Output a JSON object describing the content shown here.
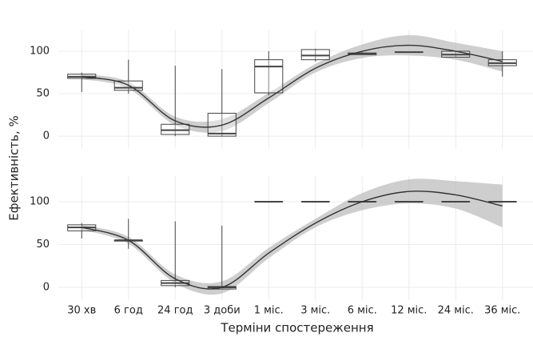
{
  "chart_data": {
    "type": "box",
    "xlabel": "Терміни спостереження",
    "ylabel": "Ефективність, %",
    "categories": [
      "30 хв",
      "6 год",
      "24 год",
      "3 доби",
      "1 міс.",
      "3 міс.",
      "6 міс.",
      "12 міс.",
      "24 міс.",
      "36 міс."
    ],
    "grid": true,
    "box_color": "#444444",
    "line_color": "#333333",
    "band_color": "#bdbdbd",
    "panels": [
      {
        "ylim": [
          -15,
          125
        ],
        "yticks": [
          0,
          50,
          100
        ],
        "boxes": [
          {
            "low": 52,
            "q1": 68,
            "median": 70,
            "q3": 73,
            "high": 75
          },
          {
            "low": 50,
            "q1": 54,
            "median": 57,
            "q3": 65,
            "high": 90
          },
          {
            "low": 0,
            "q1": 2,
            "median": 7,
            "q3": 14,
            "high": 83
          },
          {
            "low": 0,
            "q1": 0,
            "median": 3,
            "q3": 27,
            "high": 79
          },
          {
            "low": 48,
            "q1": 51,
            "median": 82,
            "q3": 90,
            "high": 100
          },
          {
            "low": 88,
            "q1": 90,
            "median": 95,
            "q3": 102,
            "high": 103
          },
          {
            "low": 96,
            "q1": 96,
            "median": 97,
            "q3": 98,
            "high": 99
          },
          {
            "low": 99,
            "q1": 99,
            "median": 99,
            "q3": 99,
            "high": 99
          },
          {
            "low": 93,
            "q1": 93,
            "median": 96,
            "q3": 100,
            "high": 100
          },
          {
            "low": 70,
            "q1": 83,
            "median": 86,
            "q3": 90,
            "high": 100
          }
        ],
        "smooth": {
          "values": [
            70,
            60,
            18,
            13,
            45,
            80,
            100,
            107,
            100,
            88
          ],
          "lower": [
            67,
            56,
            13,
            6,
            39,
            75,
            92,
            95,
            90,
            76
          ],
          "upper": [
            73,
            64,
            23,
            20,
            51,
            85,
            108,
            119,
            110,
            100
          ]
        }
      },
      {
        "ylim": [
          -15,
          130
        ],
        "yticks": [
          0,
          50,
          100
        ],
        "boxes": [
          {
            "low": 57,
            "q1": 66,
            "median": 70,
            "q3": 73,
            "high": 75
          },
          {
            "low": 45,
            "q1": 54,
            "median": 55,
            "q3": 55,
            "high": 80
          },
          {
            "low": 0,
            "q1": 2,
            "median": 5,
            "q3": 8,
            "high": 77
          },
          {
            "low": -2,
            "q1": -2,
            "median": 0,
            "q3": 1,
            "high": 72
          },
          {
            "low": 100,
            "q1": 100,
            "median": 100,
            "q3": 100,
            "high": 100
          },
          {
            "low": 100,
            "q1": 100,
            "median": 100,
            "q3": 100,
            "high": 100
          },
          {
            "low": 100,
            "q1": 100,
            "median": 100,
            "q3": 100,
            "high": 100
          },
          {
            "low": 100,
            "q1": 100,
            "median": 100,
            "q3": 100,
            "high": 100
          },
          {
            "low": 100,
            "q1": 100,
            "median": 100,
            "q3": 100,
            "high": 100
          },
          {
            "low": 100,
            "q1": 100,
            "median": 100,
            "q3": 100,
            "high": 100
          }
        ],
        "smooth": {
          "values": [
            70,
            55,
            10,
            0,
            40,
            75,
            100,
            112,
            108,
            95
          ],
          "lower": [
            67,
            51,
            5,
            -7,
            34,
            70,
            90,
            98,
            92,
            70
          ],
          "upper": [
            73,
            59,
            15,
            7,
            46,
            80,
            110,
            126,
            124,
            120
          ]
        }
      }
    ]
  }
}
